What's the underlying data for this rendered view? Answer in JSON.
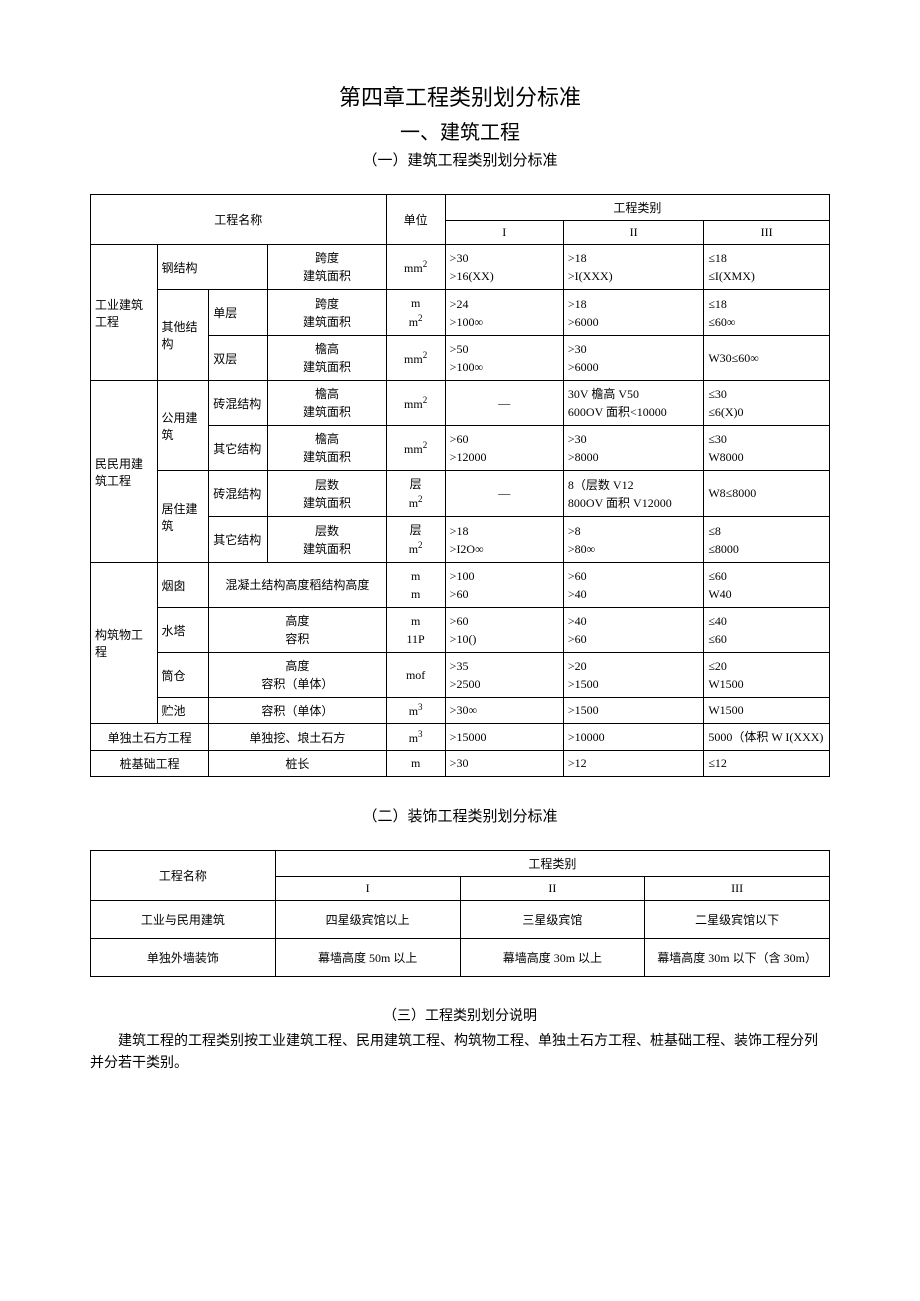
{
  "chapter_title": "第四章工程类别划分标准",
  "section_title": "一、建筑工程",
  "subsection1_title": "（一）建筑工程类别划分标准",
  "subsection2_title": "（二）装饰工程类别划分标准",
  "subsection3_title": "（三）工程类别划分说明",
  "explain_text": "建筑工程的工程类别按工业建筑工程、民用建筑工程、构筑物工程、单独土石方工程、桩基础工程、装饰工程分列并分若干类别。",
  "t1": {
    "h_name": "工程名称",
    "h_unit": "单位",
    "h_cat": "工程类别",
    "h_c1": "I",
    "h_c2": "II",
    "h_c3": "III",
    "g1": "工业建筑工程",
    "g1a": "钢结构",
    "g1a_m": "跨度\n建筑面积",
    "g1a_u": "mm²",
    "g1a_1": ">30\n>16(XX)",
    "g1a_2": ">18\n>I(XXX)",
    "g1a_3": "≤18\n≤I(XMX)",
    "g1b": "其他结构",
    "g1b1": "单层",
    "g1b1_m": "跨度\n建筑面积",
    "g1b1_u": "m\nm²",
    "g1b1_1": ">24\n>100∞",
    "g1b1_2": ">18\n>6000",
    "g1b1_3": "≤18\n≤60∞",
    "g1b2": "双层",
    "g1b2_m": "檐高\n建筑面积",
    "g1b2_u": "mm²",
    "g1b2_1": ">50\n>100∞",
    "g1b2_2": ">30\n>6000",
    "g1b2_3": "W30≤60∞",
    "g2": "民民用建筑工程",
    "g2a": "公用建筑",
    "g2a1": "砖混结构",
    "g2a1_m": "檐高\n建筑面积",
    "g2a1_u": "mm²",
    "g2a1_1": "—",
    "g2a1_2": "30V 檐高 V50\n600OV 面积<10000",
    "g2a1_3": "≤30\n≤6(X)0",
    "g2a2": "其它结构",
    "g2a2_m": "檐高\n建筑面积",
    "g2a2_u": "mm²",
    "g2a2_1": ">60\n>12000",
    "g2a2_2": ">30\n>8000",
    "g2a2_3": "≤30\nW8000",
    "g2b": "居住建筑",
    "g2b1": "砖混结构",
    "g2b1_m": "层数\n建筑面积",
    "g2b1_u": "层\nm²",
    "g2b1_1": "—",
    "g2b1_2": "8（层数 V12\n800OV 面积 V12000",
    "g2b1_3": "W8≤8000",
    "g2b2": "其它结构",
    "g2b2_m": "层数\n建筑面积",
    "g2b2_u": "层\nm²",
    "g2b2_1": ">18\n>I2O∞",
    "g2b2_2": ">8\n>80∞",
    "g2b2_3": "≤8\n≤8000",
    "g3": "构筑物工程",
    "g3a": "烟囱",
    "g3a_m": "混凝土结构高度稻结构高度",
    "g3a_u": "m\nm",
    "g3a_1": ">100\n>60",
    "g3a_2": ">60\n>40",
    "g3a_3": "≤60\nW40",
    "g3b": "水塔",
    "g3b_m": "高度\n容积",
    "g3b_u": "m\n11P",
    "g3b_1": ">60\n>10()",
    "g3b_2": ">40\n>60",
    "g3b_3": "≤40\n≤60",
    "g3c": "筒仓",
    "g3c_m": "高度\n容积（单体）",
    "g3c_u": "mof",
    "g3c_1": ">35\n>2500",
    "g3c_2": ">20\n>1500",
    "g3c_3": "≤20\nW1500",
    "g3d": "贮池",
    "g3d_m": "容积（单体）",
    "g3d_u": "m³",
    "g3d_1": ">30∞",
    "g3d_2": ">1500",
    "g3d_3": "W1500",
    "g4": "单独土石方工程",
    "g4_m": "单独挖、埌土石方",
    "g4_u": "m³",
    "g4_1": ">15000",
    "g4_2": ">10000",
    "g4_3": "5000（体积 W I(XXX)",
    "g5": "桩基础工程",
    "g5_m": "桩长",
    "g5_u": "m",
    "g5_1": ">30",
    "g5_2": ">12",
    "g5_3": "≤12"
  },
  "t2": {
    "h_name": "工程名称",
    "h_cat": "工程类别",
    "h_c1": "I",
    "h_c2": "II",
    "h_c3": "III",
    "r1_name": "工业与民用建筑",
    "r1_1": "四星级宾馆以上",
    "r1_2": "三星级宾馆",
    "r1_3": "二星级宾馆以下",
    "r2_name": "单独外墙装饰",
    "r2_1": "幕墙高度 50m 以上",
    "r2_2": "幕墙高度 30m 以上",
    "r2_3": "幕墙高度 30m 以下（含 30m）"
  },
  "colors": {
    "border": "#000000",
    "text": "#000000",
    "background": "#ffffff"
  }
}
